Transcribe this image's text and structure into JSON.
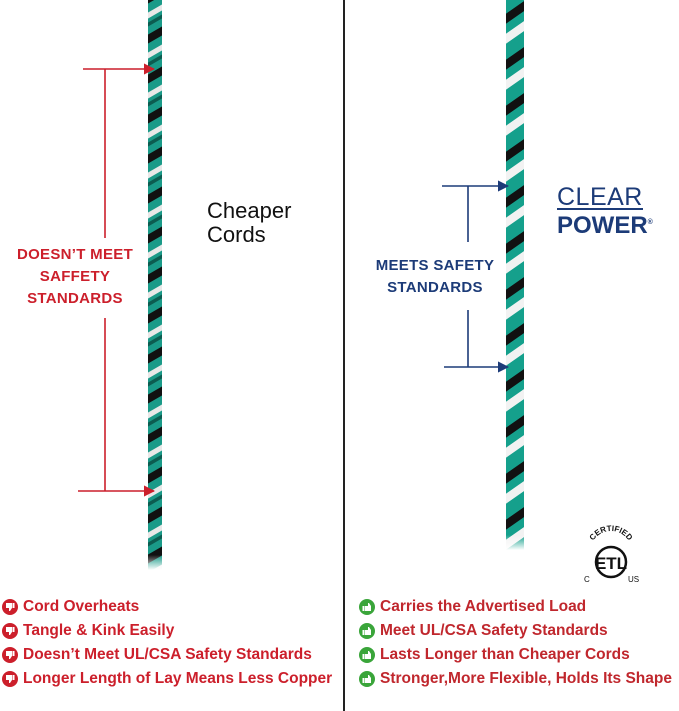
{
  "left": {
    "heading": [
      "Cheaper",
      "Cords"
    ],
    "callout": [
      "DOESN’T MEET",
      "SAFFETY",
      "STANDARDS"
    ],
    "items": [
      {
        "icon": "thumbs-down-icon",
        "text": "Cord Overheats"
      },
      {
        "icon": "thumbs-down-icon",
        "text": "Tangle & Kink Easily"
      },
      {
        "icon": "thumbs-down-icon",
        "text": "Doesn’t Meet UL/CSA Safety Standards"
      },
      {
        "icon": "thumbs-down-icon",
        "text": "Longer Length of Lay Means Less Copper"
      }
    ],
    "color": "#cc1f2b"
  },
  "right": {
    "logo": {
      "line1": "CLEAR",
      "line2": "POWER",
      "mark": "®"
    },
    "callout": [
      "MEETS SAFETY",
      "STANDARDS"
    ],
    "certification": {
      "top": "CERTIFIED",
      "mark": "ETL",
      "left": "C",
      "right": "US"
    },
    "items": [
      {
        "icon": "thumbs-up-icon",
        "text": "Carries the Advertised Load"
      },
      {
        "icon": "thumbs-up-icon",
        "text": "Meet UL/CSA Safety Standards"
      },
      {
        "icon": "thumbs-up-icon",
        "text": "Lasts Longer than Cheaper Cords"
      },
      {
        "icon": "thumbs-up-icon",
        "text": "Stronger,More Flexible, Holds Its Shape"
      }
    ],
    "color": "#1c3b78",
    "icon_color": "#3aa53a",
    "text_color": "#c0272d"
  }
}
